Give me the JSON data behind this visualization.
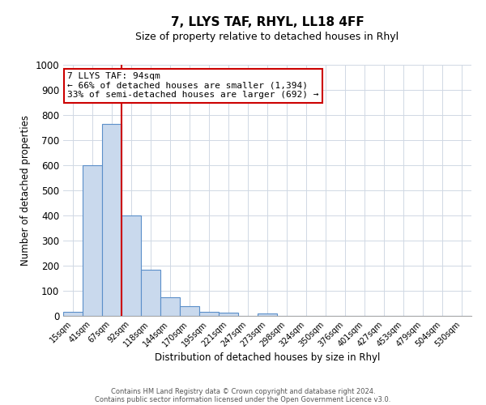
{
  "title": "7, LLYS TAF, RHYL, LL18 4FF",
  "subtitle": "Size of property relative to detached houses in Rhyl",
  "xlabel": "Distribution of detached houses by size in Rhyl",
  "ylabel": "Number of detached properties",
  "footer_line1": "Contains HM Land Registry data © Crown copyright and database right 2024.",
  "footer_line2": "Contains public sector information licensed under the Open Government Licence v3.0.",
  "bin_labels": [
    "15sqm",
    "41sqm",
    "67sqm",
    "92sqm",
    "118sqm",
    "144sqm",
    "170sqm",
    "195sqm",
    "221sqm",
    "247sqm",
    "273sqm",
    "298sqm",
    "324sqm",
    "350sqm",
    "376sqm",
    "401sqm",
    "427sqm",
    "453sqm",
    "479sqm",
    "504sqm",
    "530sqm"
  ],
  "bar_values": [
    15,
    600,
    765,
    400,
    185,
    75,
    38,
    17,
    12,
    0,
    10,
    0,
    0,
    0,
    0,
    0,
    0,
    0,
    0,
    0,
    0
  ],
  "bar_color": "#c9d9ed",
  "bar_edge_color": "#5b8fc9",
  "ylim": [
    0,
    1000
  ],
  "yticks": [
    0,
    100,
    200,
    300,
    400,
    500,
    600,
    700,
    800,
    900,
    1000
  ],
  "vline_color": "#cc0000",
  "annotation_title": "7 LLYS TAF: 94sqm",
  "annotation_line1": "← 66% of detached houses are smaller (1,394)",
  "annotation_line2": "33% of semi-detached houses are larger (692) →",
  "annotation_box_color": "#ffffff",
  "annotation_box_edge": "#cc0000",
  "background_color": "#ffffff",
  "grid_color": "#d0d8e4"
}
